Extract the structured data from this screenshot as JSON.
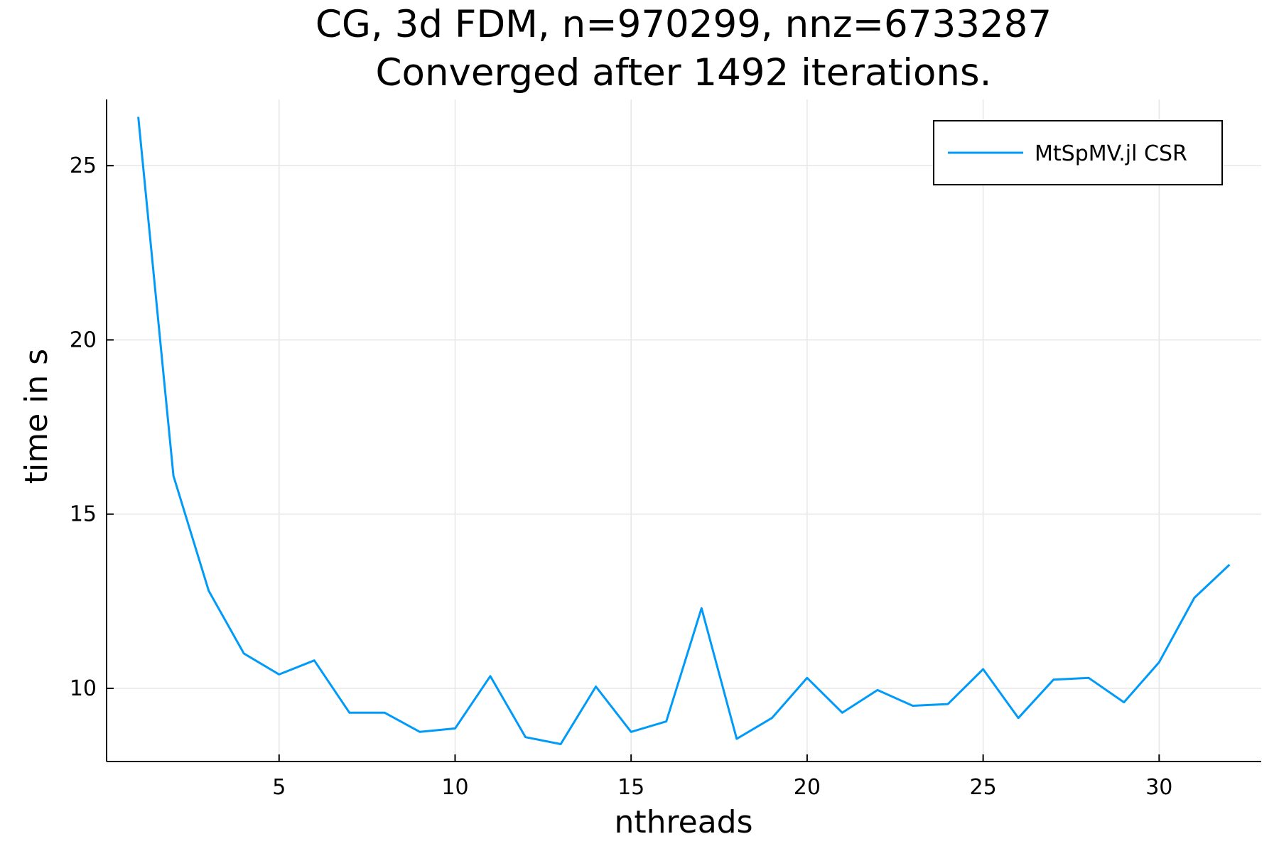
{
  "chart_data": {
    "type": "line",
    "title": "CG, 3d FDM, n=970299, nnz=6733287",
    "subtitle": "Converged after 1492 iterations.",
    "xlabel": "nthreads",
    "ylabel": "time in s",
    "xlim": [
      0.1,
      32.9
    ],
    "ylim": [
      7.9,
      26.9
    ],
    "xticks": [
      5,
      10,
      15,
      20,
      25,
      30
    ],
    "yticks": [
      10,
      15,
      20,
      25
    ],
    "grid": true,
    "legend_position": "top-right",
    "series": [
      {
        "name": "MtSpMV.jl CSR",
        "color": "#009af9",
        "x": [
          1,
          2,
          3,
          4,
          5,
          6,
          7,
          8,
          9,
          10,
          11,
          12,
          13,
          14,
          15,
          16,
          17,
          18,
          19,
          20,
          21,
          22,
          23,
          24,
          25,
          26,
          27,
          28,
          29,
          30,
          31,
          32
        ],
        "y": [
          26.4,
          16.1,
          12.8,
          11.0,
          10.4,
          10.8,
          9.3,
          9.3,
          8.75,
          8.85,
          10.35,
          8.6,
          8.4,
          10.05,
          8.75,
          9.05,
          12.3,
          8.55,
          9.15,
          10.3,
          9.3,
          9.95,
          9.5,
          9.55,
          10.55,
          9.15,
          10.25,
          10.3,
          9.6,
          10.75,
          12.6,
          13.55
        ]
      }
    ]
  }
}
